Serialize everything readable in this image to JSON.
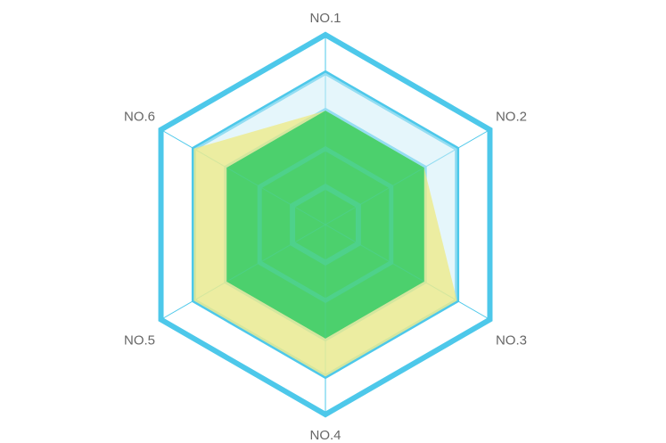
{
  "chart_data": {
    "type": "radar",
    "indicators": [
      "NO.1",
      "NO.2",
      "NO.3",
      "NO.4",
      "NO.5",
      "NO.6"
    ],
    "max": 100,
    "rings": 5,
    "series": [
      {
        "values": [
          60,
          60,
          60,
          60,
          60,
          60
        ],
        "color": "#4cd06e"
      },
      {
        "values": [
          80,
          80,
          80,
          80,
          80,
          80
        ],
        "color": "#cfeef8"
      },
      {
        "values": [
          60,
          60,
          80,
          80,
          80,
          80
        ],
        "color": "#f0e97a"
      }
    ],
    "colors": {
      "ring_outer": "#4dc8ea",
      "ring_inner": "#4fd08e",
      "label": "#666666"
    }
  }
}
